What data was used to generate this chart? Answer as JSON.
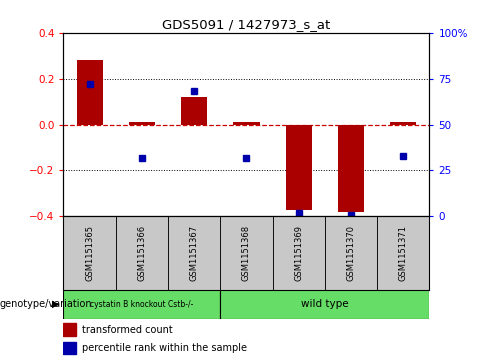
{
  "title": "GDS5091 / 1427973_s_at",
  "samples": [
    "GSM1151365",
    "GSM1151366",
    "GSM1151367",
    "GSM1151368",
    "GSM1151369",
    "GSM1151370",
    "GSM1151371"
  ],
  "transformed_count": [
    0.28,
    0.01,
    0.12,
    0.01,
    -0.37,
    -0.38,
    0.01
  ],
  "percentile_rank": [
    0.72,
    0.32,
    0.68,
    0.32,
    0.02,
    0.01,
    0.33
  ],
  "ylim": [
    -0.4,
    0.4
  ],
  "yticks_left": [
    -0.4,
    -0.2,
    0.0,
    0.2,
    0.4
  ],
  "bar_color": "#AA0000",
  "dot_color": "#0000AA",
  "zero_line_color": "#CC0000",
  "groups": [
    {
      "label": "cystatin B knockout Cstb-/-",
      "span": [
        0,
        2
      ],
      "color": "#66DD66"
    },
    {
      "label": "wild type",
      "span": [
        3,
        6
      ],
      "color": "#66DD66"
    }
  ],
  "legend_tc": "transformed count",
  "legend_pr": "percentile rank within the sample",
  "genotype_label": "genotype/variation",
  "bg_color": "#FFFFFF",
  "tick_label_bg": "#C8C8C8"
}
